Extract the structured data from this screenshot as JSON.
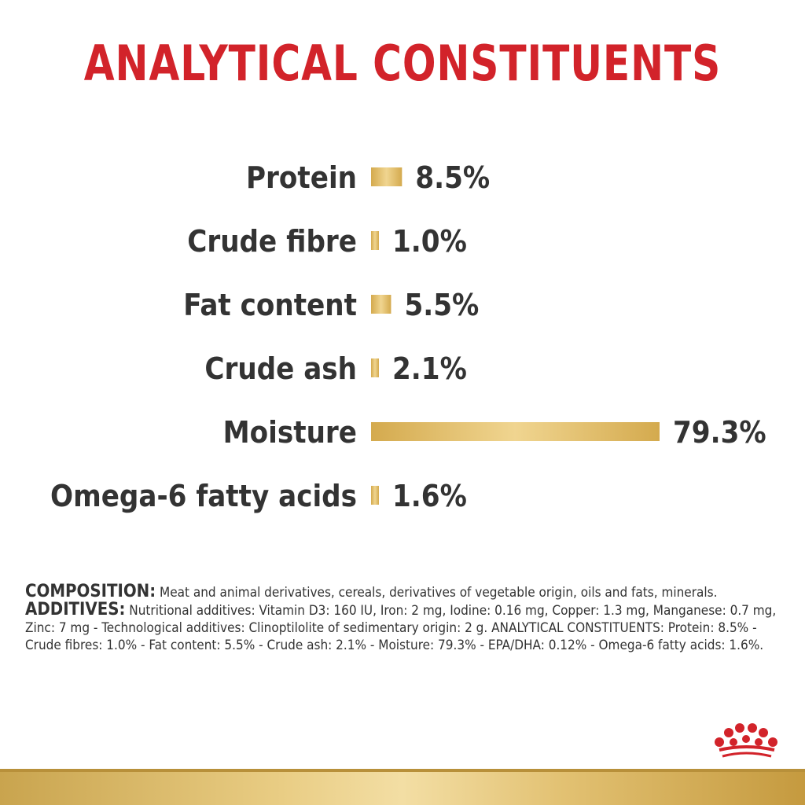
{
  "title": "ANALYTICAL CONSTITUENTS",
  "chart_data": {
    "type": "bar",
    "orientation": "horizontal",
    "categories": [
      "Protein",
      "Crude fibre",
      "Fat content",
      "Crude ash",
      "Moisture",
      "Omega-6 fatty acids"
    ],
    "values": [
      8.5,
      1.0,
      5.5,
      2.1,
      79.3,
      1.6
    ],
    "value_labels": [
      "8.5%",
      "1.0%",
      "5.5%",
      "2.1%",
      "79.3%",
      "1.6%"
    ],
    "bar_color": "#d9b45f",
    "xlim": [
      0,
      79.3
    ]
  },
  "composition": {
    "label": "COMPOSITION:",
    "text": " Meat and animal derivatives, cereals, derivatives of vegetable origin, oils and fats, minerals."
  },
  "additives": {
    "label": "ADDITIVES:",
    "text": " Nutritional additives: Vitamin D3: 160 IU, Iron: 2 mg, Iodine: 0.16 mg, Copper: 1.3 mg, Manganese: 0.7 mg, Zinc: 7 mg - Technological additives: Clinoptilolite of sedimentary origin: 2 g. ANALYTICAL CONSTITUENTS: Protein: 8.5% - Crude fibres: 1.0% - Fat content: 5.5% - Crude ash: 2.1% - Moisture: 79.3% - EPA/DHA: 0.12% - Omega-6 fatty acids: 1.6%."
  },
  "colors": {
    "title": "#d2232a",
    "text": "#333333",
    "gold": "#d9b45f",
    "logo": "#d2232a"
  },
  "icons": {
    "logo": "crown-logo-icon"
  }
}
